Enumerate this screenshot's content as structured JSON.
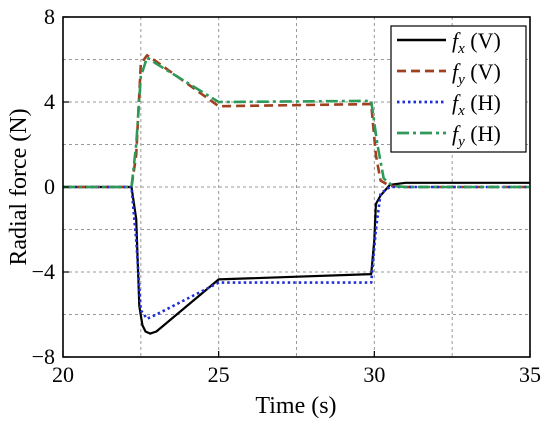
{
  "chart_data": {
    "type": "line",
    "title": "",
    "xlabel": "Time (s)",
    "ylabel": "Radial force (N)",
    "xlim": [
      20,
      35
    ],
    "ylim": [
      -8,
      8
    ],
    "xticks": [
      20,
      25,
      30,
      35
    ],
    "yticks": [
      -8,
      -4,
      0,
      4,
      8
    ],
    "grid": true,
    "legend_position": "top-right",
    "series": [
      {
        "name": "fx (V)",
        "legend_symbol": "f",
        "legend_sub": "x",
        "legend_suffix": " (V)",
        "color": "#000000",
        "style": "solid",
        "x": [
          20,
          22.0,
          22.2,
          22.35,
          22.45,
          22.55,
          22.65,
          22.8,
          23.0,
          25.0,
          29.9,
          30.0,
          30.05,
          30.2,
          30.5,
          31,
          35
        ],
        "y": [
          0,
          0,
          0,
          -1.5,
          -5.6,
          -6.5,
          -6.8,
          -6.9,
          -6.8,
          -4.35,
          -4.1,
          -2.5,
          -0.8,
          -0.4,
          0.1,
          0.2,
          0.2
        ]
      },
      {
        "name": "fy (V)",
        "legend_symbol": "f",
        "legend_sub": "y",
        "legend_suffix": " (V)",
        "color": "#a0401e",
        "style": "dashed",
        "x": [
          20,
          22.0,
          22.2,
          22.35,
          22.5,
          22.7,
          23.0,
          25.0,
          29.9,
          30.05,
          30.2,
          30.5,
          31,
          35
        ],
        "y": [
          0,
          0,
          0,
          1.5,
          5.8,
          6.2,
          5.9,
          3.8,
          3.9,
          1.5,
          0.3,
          0.05,
          0,
          0
        ]
      },
      {
        "name": "fx (H)",
        "legend_symbol": "f",
        "legend_sub": "x",
        "legend_suffix": " (H)",
        "color": "#1f2fd8",
        "style": "dotted",
        "x": [
          20,
          22.0,
          22.2,
          22.35,
          22.5,
          22.7,
          23.0,
          25.0,
          29.9,
          30.05,
          30.2,
          30.5,
          31,
          35
        ],
        "y": [
          0,
          0,
          0,
          -2.5,
          -5.8,
          -6.2,
          -6.0,
          -4.5,
          -4.5,
          -2.0,
          -0.3,
          0,
          0,
          0
        ]
      },
      {
        "name": "fy (H)",
        "legend_symbol": "f",
        "legend_sub": "y",
        "legend_suffix": " (H)",
        "color": "#2e9a5a",
        "style": "dashdot",
        "x": [
          20,
          22.0,
          22.2,
          22.35,
          22.5,
          22.7,
          23.0,
          25.0,
          29.9,
          30.1,
          30.3,
          30.6,
          31,
          35
        ],
        "y": [
          0,
          0,
          0,
          2.0,
          5.2,
          6.1,
          5.8,
          4.0,
          4.05,
          2.0,
          0.4,
          0.05,
          0,
          0
        ]
      }
    ]
  }
}
